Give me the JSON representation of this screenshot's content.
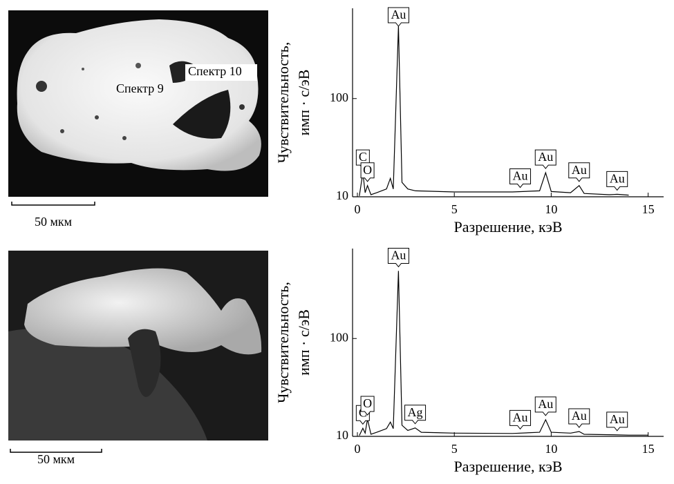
{
  "images": [
    {
      "labels": [
        "Спектр 9",
        "Спектр 10"
      ],
      "scale_bar": "50 мкм"
    },
    {
      "scale_bar": "50 мкм"
    }
  ],
  "chart_data": [
    {
      "type": "line",
      "x_label": "Разрешение, кэВ",
      "y_label": [
        "Чувствительность,",
        "имп · с/эВ"
      ],
      "color": "#000000",
      "x": [
        0.1,
        0.28,
        0.4,
        0.52,
        0.7,
        1.0,
        1.5,
        1.7,
        1.85,
        2.12,
        2.3,
        2.6,
        3.0,
        5,
        8,
        9.4,
        9.71,
        10.0,
        11.0,
        11.44,
        11.7,
        13.0,
        13.4,
        14.0
      ],
      "values": [
        10.2,
        17.6,
        11,
        13,
        10.5,
        11,
        12,
        15.4,
        12,
        550,
        14,
        12,
        11.5,
        11.2,
        11.2,
        11.5,
        17.6,
        11.3,
        11,
        13,
        10.8,
        10.5,
        10.6,
        10.4
      ],
      "annotations": [
        {
          "text": "C",
          "x": 0.28
        },
        {
          "text": "O",
          "x": 0.52
        },
        {
          "text": "Au",
          "x": 2.12
        },
        {
          "text": "Au",
          "x": 8.4
        },
        {
          "text": "Au",
          "x": 9.71
        },
        {
          "text": "Au",
          "x": 11.44
        },
        {
          "text": "Au",
          "x": 13.4
        }
      ],
      "xlim": [
        -0.25,
        15.8
      ],
      "xticks": [
        0,
        5,
        10,
        15
      ],
      "ylim": [
        10,
        830
      ],
      "yticks": [
        10,
        100
      ],
      "log_scale": true
    },
    {
      "type": "line",
      "x_label": "Разрешение, кэВ",
      "y_label": [
        "Чувствительность,",
        "имп · с/эВ"
      ],
      "color": "#000000",
      "x": [
        0.1,
        0.28,
        0.4,
        0.52,
        0.7,
        1.0,
        1.5,
        1.7,
        1.85,
        2.12,
        2.3,
        2.6,
        2.98,
        3.3,
        5,
        8,
        9.4,
        9.71,
        10.0,
        11.0,
        11.44,
        11.7,
        13.0,
        14.0,
        15.0
      ],
      "values": [
        10.2,
        12.1,
        10.8,
        15,
        10.5,
        11,
        12,
        14,
        12,
        490,
        13,
        11.5,
        12.2,
        11,
        10.8,
        10.7,
        11,
        14.8,
        11,
        10.8,
        11.2,
        10.5,
        10.4,
        10.3,
        10.3
      ],
      "annotations": [
        {
          "text": "C",
          "x": 0.28
        },
        {
          "text": "O",
          "x": 0.52
        },
        {
          "text": "Au",
          "x": 2.12
        },
        {
          "text": "Ag",
          "x": 2.98
        },
        {
          "text": "Au",
          "x": 8.4
        },
        {
          "text": "Au",
          "x": 9.71
        },
        {
          "text": "Au",
          "x": 11.44
        },
        {
          "text": "Au",
          "x": 13.4
        }
      ],
      "xlim": [
        -0.25,
        15.8
      ],
      "xticks": [
        0,
        5,
        10,
        15
      ],
      "ylim": [
        10,
        830
      ],
      "yticks": [
        10,
        100
      ],
      "log_scale": true
    }
  ]
}
